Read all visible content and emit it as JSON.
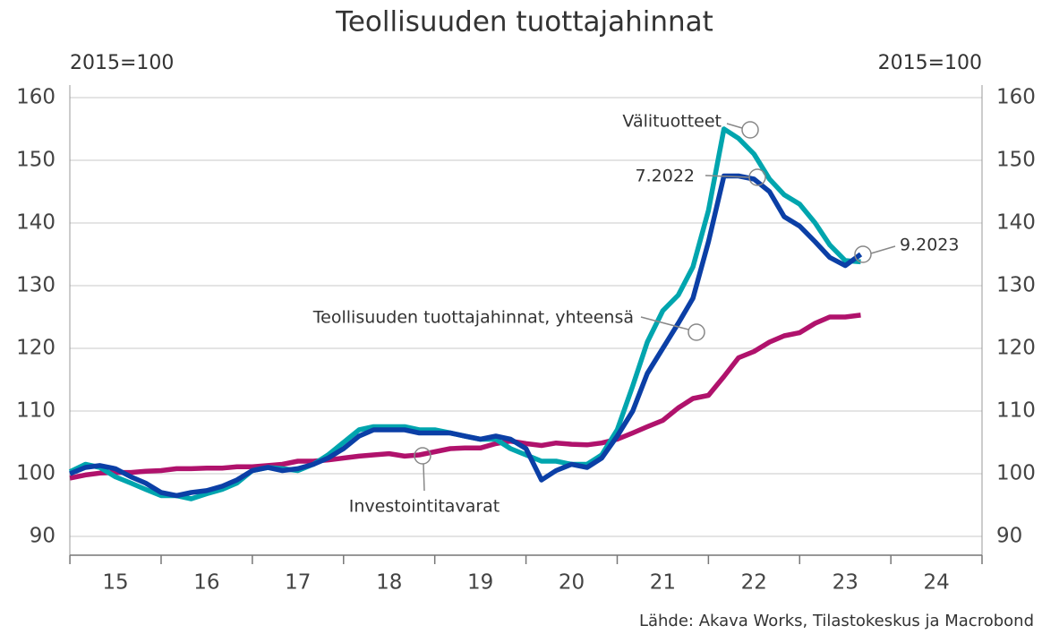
{
  "chart_data": {
    "type": "line",
    "title": "Teollisuuden tuottajahinnat",
    "y_label_left": "2015=100",
    "y_label_right": "2015=100",
    "source": "Lähde: Akava Works, Tilastokeskus ja Macrobond",
    "x": [
      2015.0,
      2015.17,
      2015.33,
      2015.5,
      2015.67,
      2015.83,
      2016.0,
      2016.17,
      2016.33,
      2016.5,
      2016.67,
      2016.83,
      2017.0,
      2017.17,
      2017.33,
      2017.5,
      2017.67,
      2017.83,
      2018.0,
      2018.17,
      2018.33,
      2018.5,
      2018.67,
      2018.83,
      2019.0,
      2019.17,
      2019.33,
      2019.5,
      2019.67,
      2019.83,
      2020.0,
      2020.17,
      2020.33,
      2020.5,
      2020.67,
      2020.83,
      2021.0,
      2021.17,
      2021.33,
      2021.5,
      2021.67,
      2021.83,
      2022.0,
      2022.17,
      2022.33,
      2022.5,
      2022.67,
      2022.83,
      2023.0,
      2023.17,
      2023.33,
      2023.5,
      2023.67
    ],
    "series": [
      {
        "name": "Investointitavarat",
        "color": "#b0126c",
        "values": [
          99.3,
          99.8,
          100.1,
          100.2,
          100.2,
          100.4,
          100.5,
          100.8,
          100.8,
          100.9,
          100.9,
          101.1,
          101.1,
          101.3,
          101.5,
          102,
          102,
          102.2,
          102.5,
          102.8,
          103,
          103.2,
          102.8,
          103,
          103.5,
          104,
          104.1,
          104.1,
          104.8,
          105.2,
          104.8,
          104.5,
          104.9,
          104.7,
          104.6,
          104.9,
          105.5,
          106.5,
          107.5,
          108.5,
          110.5,
          112,
          112.5,
          115.5,
          118.5,
          119.5,
          121,
          122,
          122.5,
          124,
          125,
          125,
          125.3
        ]
      },
      {
        "name": "Välituotteet",
        "color": "#00a5ae",
        "values": [
          100.3,
          101.5,
          101,
          99.5,
          98.5,
          97.5,
          96.5,
          96.5,
          96,
          96.8,
          97.5,
          98.5,
          100.5,
          101,
          100.8,
          100.5,
          101.5,
          103,
          105,
          107,
          107.5,
          107.5,
          107.5,
          107,
          107,
          106.5,
          106,
          105.5,
          105.5,
          104,
          103,
          102,
          102,
          101.5,
          101.5,
          103,
          107,
          114,
          121,
          126,
          128.5,
          133,
          142,
          155,
          153.5,
          151,
          147,
          144.5,
          143,
          140,
          136.5,
          134,
          133.8
        ]
      },
      {
        "name": "Teollisuuden tuottajahinnat, yhteensä",
        "color": "#0b3fa6",
        "values": [
          100,
          101,
          101.3,
          100.8,
          99.5,
          98.5,
          97,
          96.5,
          97,
          97.3,
          98,
          99,
          100.5,
          101,
          100.5,
          100.8,
          101.5,
          102.5,
          104,
          106,
          107,
          107,
          107,
          106.5,
          106.5,
          106.5,
          106,
          105.5,
          106,
          105.5,
          104,
          99,
          100.5,
          101.5,
          101,
          102.5,
          106,
          110,
          116,
          120,
          124,
          128,
          137,
          147.5,
          147.5,
          147,
          145,
          141,
          139.5,
          137,
          134.5,
          133.2,
          135
        ]
      }
    ],
    "annotations": [
      "Välituotteet",
      "7.2022",
      "9.2023",
      "Teollisuuden tuottajahinnat, yhteensä",
      "Investointitavarat"
    ],
    "xlim": [
      2014.96,
      2024.96
    ],
    "xticks": [
      {
        "value": 2015,
        "label": "15"
      },
      {
        "value": 2016,
        "label": "16"
      },
      {
        "value": 2017,
        "label": "17"
      },
      {
        "value": 2018,
        "label": "18"
      },
      {
        "value": 2019,
        "label": "19"
      },
      {
        "value": 2020,
        "label": "20"
      },
      {
        "value": 2021,
        "label": "21"
      },
      {
        "value": 2022,
        "label": "22"
      },
      {
        "value": 2023,
        "label": "23"
      },
      {
        "value": 2024,
        "label": "24"
      }
    ],
    "ylim": [
      87,
      162
    ],
    "yticks": [
      90,
      100,
      110,
      120,
      130,
      140,
      150,
      160
    ],
    "grid": true
  }
}
